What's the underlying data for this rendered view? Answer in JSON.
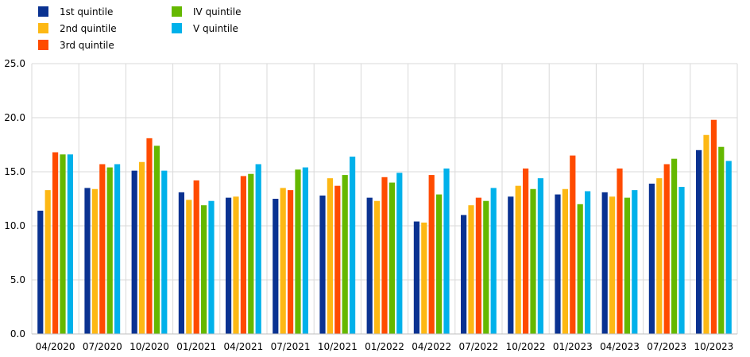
{
  "chart_data": {
    "type": "bar",
    "categories": [
      "04/2020",
      "07/2020",
      "10/2020",
      "01/2021",
      "04/2021",
      "07/2021",
      "10/2021",
      "01/2022",
      "04/2022",
      "07/2022",
      "10/2022",
      "01/2023",
      "04/2023",
      "07/2023",
      "10/2023"
    ],
    "series": [
      {
        "name": "1st quintile",
        "color": "#0a3291",
        "values": [
          11.4,
          13.5,
          15.1,
          13.1,
          12.6,
          12.5,
          12.8,
          12.6,
          10.4,
          11.0,
          12.7,
          12.9,
          13.1,
          13.9,
          17.0
        ]
      },
      {
        "name": "2nd quintile",
        "color": "#fdb814",
        "values": [
          13.3,
          13.4,
          15.9,
          12.4,
          12.7,
          13.5,
          14.4,
          12.3,
          10.3,
          11.9,
          13.7,
          13.4,
          12.7,
          14.4,
          18.4
        ]
      },
      {
        "name": "3rd quintile",
        "color": "#ff4b00",
        "values": [
          16.8,
          15.7,
          18.1,
          14.2,
          14.6,
          13.3,
          13.7,
          14.5,
          14.7,
          12.6,
          15.3,
          16.5,
          15.3,
          15.7,
          19.8
        ]
      },
      {
        "name": "IV quintile",
        "color": "#65b800",
        "values": [
          16.6,
          15.4,
          17.4,
          11.9,
          14.8,
          15.2,
          14.7,
          14.0,
          12.9,
          12.3,
          13.4,
          12.0,
          12.6,
          16.2,
          17.3
        ]
      },
      {
        "name": "V quintile",
        "color": "#00b1ea",
        "values": [
          16.6,
          15.7,
          15.1,
          12.3,
          15.7,
          15.4,
          16.4,
          14.9,
          15.3,
          13.5,
          14.4,
          13.2,
          13.3,
          13.6,
          16.0
        ]
      }
    ],
    "ylim": [
      0,
      25
    ],
    "yticks": [
      "0.0",
      "5.0",
      "10.0",
      "15.0",
      "20.0",
      "25.0"
    ],
    "grid": true,
    "legend_position": "top-left"
  }
}
